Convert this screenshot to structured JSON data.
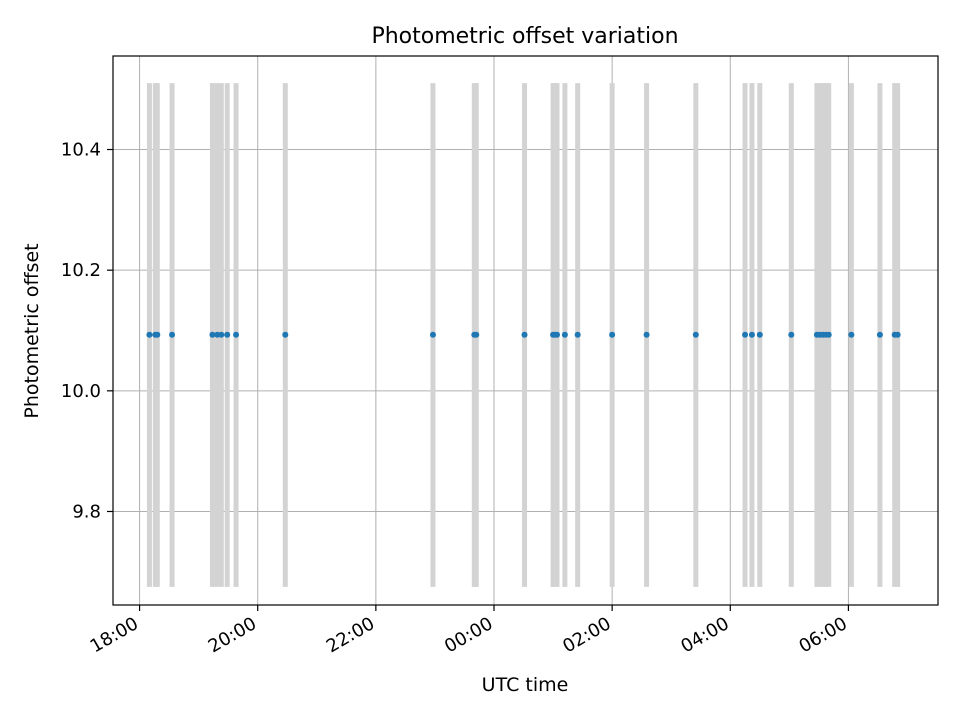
{
  "chart_data": {
    "type": "scatter",
    "title": "Photometric offset variation",
    "xlabel": "UTC time",
    "ylabel": "Photometric offset",
    "x_axis_kind": "time-of-day, spanning two consecutive days (18:00 on day 1 to about 07:00 on day 2)",
    "xlim": [
      "17:33",
      "07:31"
    ],
    "ylim": [
      9.645,
      10.555
    ],
    "x_ticks": [
      {
        "time": "18:00",
        "label": "18:00"
      },
      {
        "time": "20:00",
        "label": "20:00"
      },
      {
        "time": "22:00",
        "label": "22:00"
      },
      {
        "time": "24:00",
        "label": "00:00"
      },
      {
        "time": "26:00",
        "label": "02:00"
      },
      {
        "time": "28:00",
        "label": "04:00"
      },
      {
        "time": "30:00",
        "label": "06:00"
      }
    ],
    "y_ticks": [
      {
        "value": 9.8,
        "label": "9.8"
      },
      {
        "value": 10.0,
        "label": "10.0"
      },
      {
        "value": 10.2,
        "label": "10.2"
      },
      {
        "value": 10.4,
        "label": "10.4"
      }
    ],
    "grid": true,
    "band_range": [
      9.675,
      10.51
    ],
    "colors": {
      "points": "#1f77b4",
      "bands": "#d3d3d3",
      "grid": "#b0b0b0",
      "axes": "#000000"
    },
    "series": [
      {
        "y_value": 10.093,
        "x": [
          "18:10",
          "18:16",
          "18:18",
          "18:33",
          "19:14",
          "19:19",
          "19:23",
          "19:29",
          "19:38",
          "20:28",
          "22:58",
          "23:40",
          "23:42",
          "00:31",
          "01:00",
          "01:02",
          "01:04",
          "01:12",
          "01:25",
          "02:00",
          "02:35",
          "03:25",
          "04:15",
          "04:22",
          "04:30",
          "05:02",
          "05:28",
          "05:31",
          "05:34",
          "05:37",
          "05:40",
          "06:03",
          "06:32",
          "06:47",
          "06:50"
        ]
      }
    ]
  }
}
